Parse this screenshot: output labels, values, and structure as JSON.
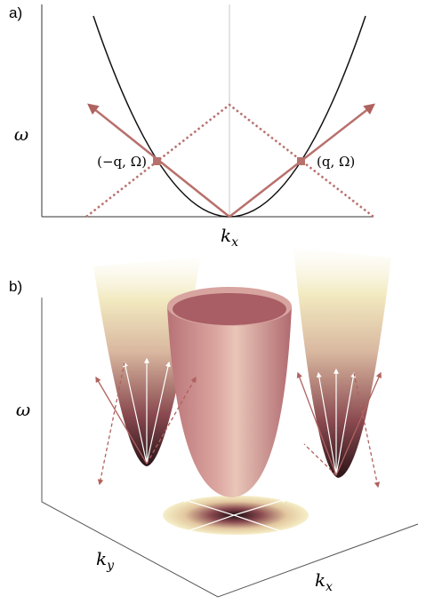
{
  "panels": [
    {
      "label": "a)",
      "y_axis": "ω",
      "x_axis": {
        "base": "k",
        "sub": "x"
      },
      "points": [
        "(−q, Ω)",
        "(q, Ω)"
      ]
    },
    {
      "label": "b)",
      "z_axis": "ω",
      "x_axis": {
        "base": "k",
        "sub": "x"
      },
      "y_axis": {
        "base": "k",
        "sub": "y"
      }
    }
  ]
}
